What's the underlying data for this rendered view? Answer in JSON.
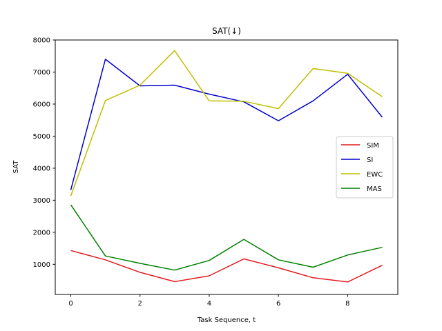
{
  "chart_data": {
    "type": "line",
    "title": "SAT(↓)",
    "xlabel": "Task Sequence, t",
    "ylabel": "SAT",
    "x": [
      0,
      1,
      2,
      3,
      4,
      5,
      6,
      7,
      8,
      9
    ],
    "xlim": [
      -0.45,
      9.45
    ],
    "ylim": [
      60,
      8000
    ],
    "xticks": [
      0,
      2,
      4,
      6,
      8
    ],
    "yticks": [
      1000,
      2000,
      3000,
      4000,
      5000,
      6000,
      7000,
      8000
    ],
    "grid": false,
    "legend_position": "center-right",
    "series": [
      {
        "name": "SIM",
        "color": "#e31a1c",
        "values": [
          1430,
          1140,
          750,
          460,
          640,
          1170,
          890,
          580,
          450,
          970
        ]
      },
      {
        "name": "SI",
        "color": "#0000cc",
        "values": [
          3320,
          7400,
          6570,
          6590,
          6310,
          6070,
          5480,
          6100,
          6930,
          5590
        ]
      },
      {
        "name": "EWC",
        "color": "#bfbf00",
        "values": [
          3130,
          6110,
          6590,
          7670,
          6100,
          6090,
          5860,
          7110,
          6960,
          6230
        ]
      },
      {
        "name": "MAS",
        "color": "#008000",
        "values": [
          2860,
          1260,
          1030,
          820,
          1120,
          1780,
          1140,
          910,
          1290,
          1530
        ]
      }
    ]
  }
}
